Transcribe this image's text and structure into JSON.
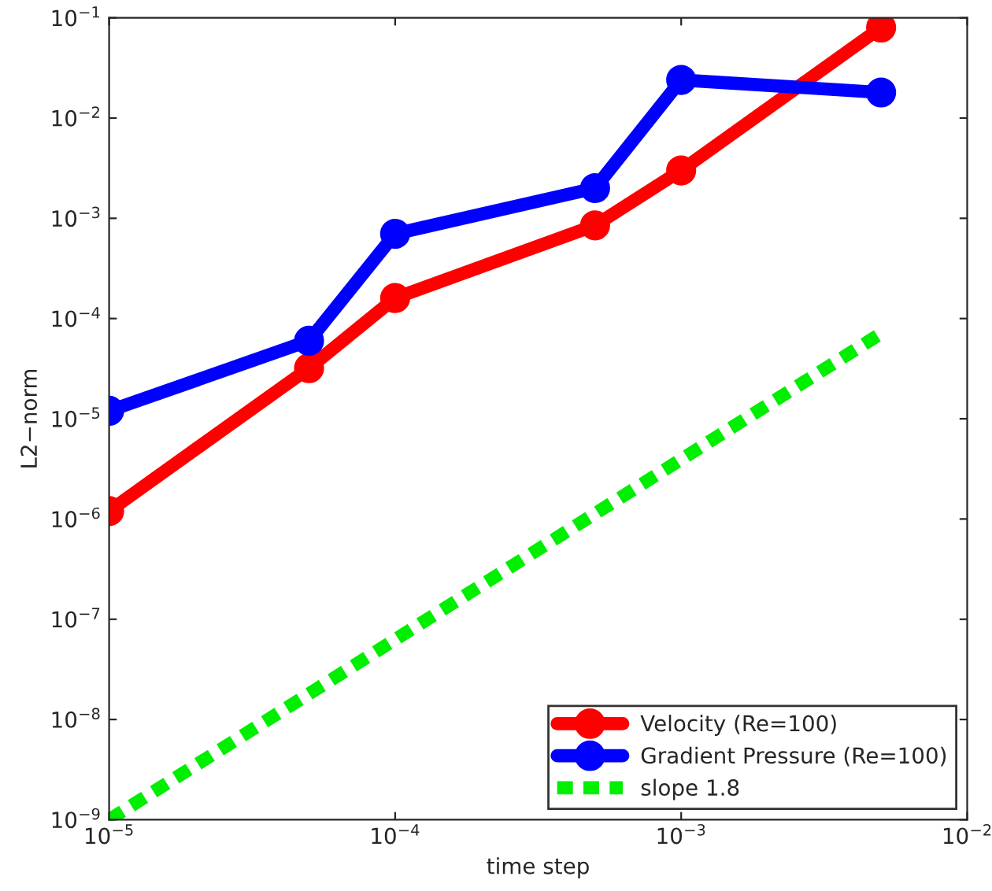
{
  "chart_data": {
    "type": "line",
    "xlabel": "time step",
    "ylabel": "L2−norm",
    "log": "xy",
    "xlim": [
      1e-05,
      0.01
    ],
    "ylim": [
      1e-09,
      0.1
    ],
    "xticks": [
      {
        "value": 1e-05,
        "label": "10$^{−5}$"
      },
      {
        "value": 0.0001,
        "label": "10$^{−4}$"
      },
      {
        "value": 0.001,
        "label": "10$^{−3}$"
      },
      {
        "value": 0.01,
        "label": "10$^{−2}$"
      }
    ],
    "yticks": [
      {
        "value": 1e-09,
        "label": "10$^{−9}$"
      },
      {
        "value": 1e-08,
        "label": "10$^{−8}$"
      },
      {
        "value": 1e-07,
        "label": "10$^{−7}$"
      },
      {
        "value": 1e-06,
        "label": "10$^{−6}$"
      },
      {
        "value": 1e-05,
        "label": "10$^{−5}$"
      },
      {
        "value": 0.0001,
        "label": "10$^{−4}$"
      },
      {
        "value": 0.001,
        "label": "10$^{−3}$"
      },
      {
        "value": 0.01,
        "label": "10$^{−2}$"
      },
      {
        "value": 0.1,
        "label": "10$^{−1}$"
      }
    ],
    "grid": false,
    "legend": "bottom right",
    "series": [
      {
        "name": "Velocity (Re=100)",
        "color": "#ff0000",
        "marker": "circle",
        "line_style": "solid",
        "x": [
          1e-05,
          5e-05,
          0.0001,
          0.0005,
          0.001,
          0.005
        ],
        "values": [
          1.2e-06,
          3.2e-05,
          0.00016,
          0.00085,
          0.003,
          0.08
        ]
      },
      {
        "name": "Gradient Pressure (Re=100)",
        "color": "#0000ff",
        "marker": "circle",
        "line_style": "solid",
        "x": [
          1e-05,
          5e-05,
          0.0001,
          0.0005,
          0.001,
          0.005
        ],
        "values": [
          1.2e-05,
          6e-05,
          0.0007,
          0.002,
          0.024,
          0.018
        ]
      },
      {
        "name": "slope 1.8",
        "color": "#00ee00",
        "marker": "none",
        "line_style": "dashed",
        "x": [
          1e-05,
          0.005
        ],
        "values": [
          1e-09,
          7.1e-05
        ]
      }
    ]
  }
}
